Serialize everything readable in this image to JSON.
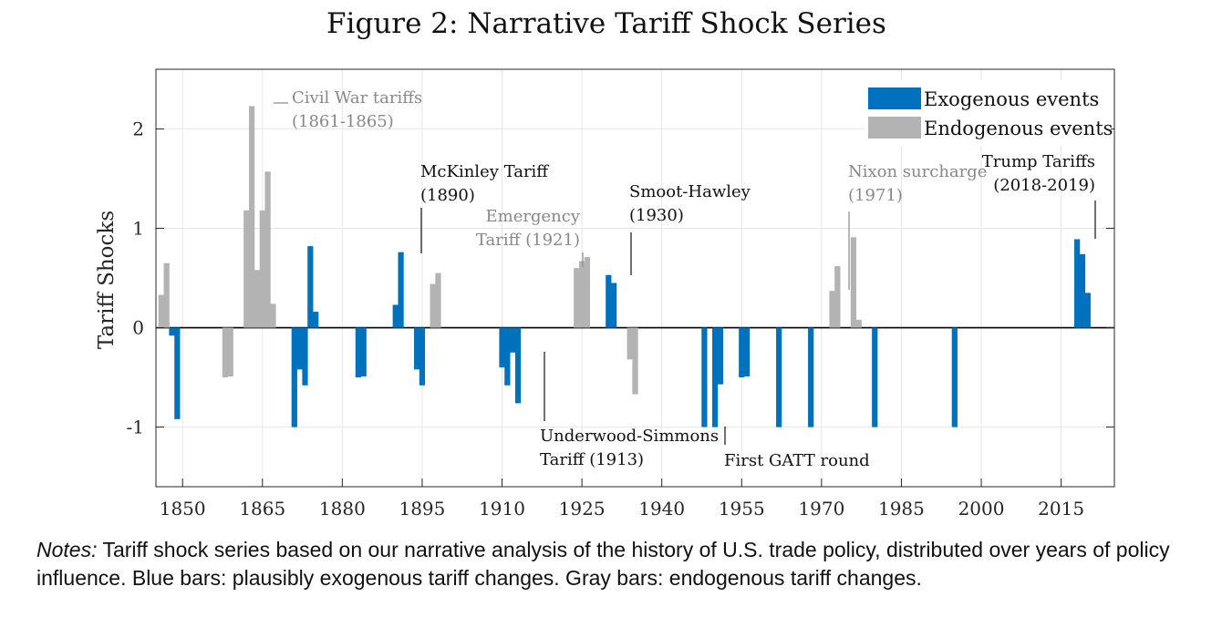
{
  "figure": {
    "title": "Figure 2: Narrative Tariff Shock Series"
  },
  "notes": {
    "lead": "Notes:",
    "text": " Tariff shock series based on our narrative analysis of the history of U.S. trade policy, distributed over years of policy influence. Blue bars: plausibly exogenous tariff changes. Gray bars: endogenous tariff changes."
  },
  "chart_data": {
    "type": "bar",
    "title": "Figure 2: Narrative Tariff Shock Series",
    "xlabel": "",
    "ylabel": "Tariff Shocks",
    "xlim": [
      1845,
      2025
    ],
    "ylim": [
      -1.6,
      2.6
    ],
    "x_ticks": [
      1850,
      1865,
      1880,
      1895,
      1910,
      1925,
      1940,
      1955,
      1970,
      1985,
      2000,
      2015
    ],
    "y_ticks": [
      -1,
      0,
      1,
      2
    ],
    "y_tick_labels": [
      "-1",
      "0",
      "1",
      "2"
    ],
    "grid": true,
    "legend_position": "top-right",
    "colors": {
      "exogenous": "#0072BD",
      "endogenous": "#B3B3B3"
    },
    "series": [
      {
        "name": "Exogenous events",
        "color": "#0072BD",
        "x": [
          1848,
          1849,
          1871,
          1872,
          1873,
          1874,
          1875,
          1876,
          1883,
          1884,
          1890,
          1891,
          1894,
          1895,
          1910,
          1911,
          1912,
          1913,
          1930,
          1931,
          1948,
          1949,
          1950,
          1951,
          1955,
          1956,
          1962,
          1968,
          1980,
          1995,
          2018,
          2019,
          2020
        ],
        "values": [
          -0.08,
          -0.92,
          -1.0,
          -0.42,
          -0.58,
          0.82,
          0.16,
          0.0,
          -0.5,
          -0.49,
          0.23,
          0.76,
          -0.42,
          -0.58,
          -0.4,
          -0.58,
          -0.25,
          -0.76,
          0.53,
          0.45,
          -1.0,
          0.0,
          -1.0,
          -0.57,
          -0.5,
          -0.49,
          -1.0,
          -1.0,
          -1.0,
          -1.0,
          0.89,
          0.74,
          0.35
        ]
      },
      {
        "name": "Endogenous events",
        "color": "#B3B3B3",
        "x": [
          1846,
          1847,
          1858,
          1859,
          1862,
          1863,
          1864,
          1865,
          1866,
          1867,
          1897,
          1898,
          1924,
          1925,
          1926,
          1927,
          1934,
          1935,
          1972,
          1973,
          1976,
          1977
        ],
        "values": [
          0.33,
          0.65,
          -0.5,
          -0.49,
          1.18,
          2.23,
          0.58,
          1.18,
          1.57,
          0.24,
          0.44,
          0.55,
          0.6,
          0.67,
          0.71,
          0.0,
          -0.32,
          -0.67,
          0.37,
          0.62,
          0.91,
          0.08
        ]
      }
    ],
    "annotations": [
      {
        "name": "civil-war",
        "lines": [
          "Civil War tariffs",
          "(1861-1865)"
        ],
        "x": 1864,
        "color": "#888888"
      },
      {
        "name": "mckinley",
        "lines": [
          "McKinley Tariff",
          "(1890)"
        ],
        "x": 1891,
        "color": "#111111"
      },
      {
        "name": "emergency",
        "lines": [
          "Emergency",
          "Tariff (1921)"
        ],
        "x": 1925,
        "color": "#888888"
      },
      {
        "name": "smoot-hawley",
        "lines": [
          "Smoot-Hawley",
          "(1930)"
        ],
        "x": 1931,
        "color": "#111111"
      },
      {
        "name": "nixon",
        "lines": [
          "Nixon surcharge",
          "(1971)"
        ],
        "x": 1972,
        "color": "#888888"
      },
      {
        "name": "trump",
        "lines": [
          "Trump Tariffs",
          "(2018-2019)"
        ],
        "x": 2019,
        "color": "#111111"
      },
      {
        "name": "underwood",
        "lines": [
          "Underwood-Simmons",
          "Tariff (1913)"
        ],
        "x": 1913,
        "color": "#111111"
      },
      {
        "name": "gatt",
        "lines": [
          "First GATT round"
        ],
        "x": 1950,
        "color": "#111111"
      }
    ]
  }
}
